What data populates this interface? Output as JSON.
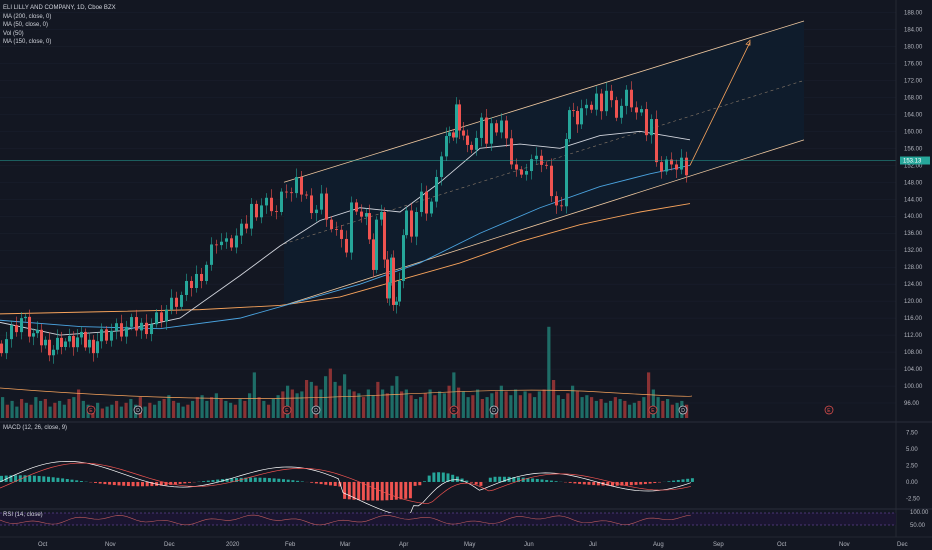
{
  "legend": {
    "title": "ELI LILLY AND COMPANY, 1D, Cboe BZX",
    "ma200": "MA (200, close, 0)",
    "ma50": "MA (50, close, 0)",
    "vol": "Vol (50)",
    "ma150": "MA (150, close, 0)"
  },
  "macd_title": "MACD (12, 26, close, 9)",
  "rsi_title": "RSI (14, close)",
  "price_marker": "153.13",
  "earnings_marker": "E",
  "dividend_marker": "D",
  "colors": {
    "up": "#26a69a",
    "down": "#ef5350",
    "channel": "#0f1c2c",
    "ma200": "#f7a35c",
    "ma50": "#d1d4dc",
    "ma150": "#4aa3df",
    "macd": "#ffffff",
    "signal": "#ef5350",
    "rsi": "#c05c5c"
  },
  "chart_data": {
    "type": "candlestick",
    "price_axis": {
      "ticks": [
        96.0,
        100.0,
        104.0,
        108.0,
        112.0,
        116.0,
        120.0,
        124.0,
        128.0,
        132.0,
        136.0,
        140.0,
        144.0,
        148.0,
        152.0,
        156.0,
        160.0,
        164.0,
        168.0,
        172.0,
        176.0,
        180.0,
        184.0,
        188.0
      ],
      "labels": [
        "96.00",
        "100.00",
        "104.00",
        "108.00",
        "112.00",
        "116.00",
        "120.00",
        "124.00",
        "128.00",
        "132.00",
        "136.00",
        "140.00",
        "144.00",
        "148.00",
        "152.00",
        "156.00",
        "160.00",
        "164.00",
        "168.00",
        "172.00",
        "176.00",
        "180.00",
        "184.00",
        "188.00"
      ],
      "range": [
        92,
        190
      ]
    },
    "time_axis": [
      "Oct",
      "Nov",
      "Dec",
      "2020",
      "Feb",
      "Mar",
      "Apr",
      "May",
      "Jun",
      "Jul",
      "Aug",
      "Sep",
      "Oct",
      "Nov",
      "Dec"
    ],
    "last_price": 153.13,
    "price_path": [
      [
        0,
        110
      ],
      [
        10,
        113
      ],
      [
        20,
        116
      ],
      [
        28,
        113
      ],
      [
        36,
        111
      ],
      [
        44,
        110
      ],
      [
        52,
        109
      ],
      [
        60,
        111
      ],
      [
        68,
        110
      ],
      [
        76,
        111
      ],
      [
        84,
        110
      ],
      [
        92,
        110
      ],
      [
        100,
        112
      ],
      [
        110,
        113
      ],
      [
        120,
        113
      ],
      [
        130,
        114
      ],
      [
        140,
        114
      ],
      [
        150,
        115
      ],
      [
        160,
        117
      ],
      [
        170,
        119
      ],
      [
        180,
        121
      ],
      [
        190,
        124
      ],
      [
        200,
        127
      ],
      [
        205,
        129
      ],
      [
        210,
        132
      ],
      [
        215,
        135
      ],
      [
        220,
        134
      ],
      [
        225,
        133
      ],
      [
        230,
        134
      ],
      [
        235,
        135
      ],
      [
        240,
        136
      ],
      [
        245,
        138
      ],
      [
        250,
        142
      ],
      [
        255,
        142
      ],
      [
        260,
        143
      ],
      [
        265,
        143
      ],
      [
        270,
        143
      ],
      [
        275,
        141
      ],
      [
        280,
        144
      ],
      [
        285,
        147
      ],
      [
        290,
        145
      ],
      [
        295,
        147
      ],
      [
        300,
        146
      ],
      [
        305,
        144
      ],
      [
        310,
        143
      ],
      [
        315,
        142
      ],
      [
        320,
        144
      ],
      [
        325,
        141
      ],
      [
        330,
        137
      ],
      [
        335,
        135
      ],
      [
        340,
        136
      ],
      [
        345,
        131
      ],
      [
        350,
        141
      ],
      [
        355,
        142
      ],
      [
        360,
        139
      ],
      [
        365,
        143
      ],
      [
        368,
        135
      ],
      [
        372,
        126
      ],
      [
        375,
        141
      ],
      [
        380,
        141
      ],
      [
        383,
        128
      ],
      [
        386,
        122
      ],
      [
        388,
        124
      ],
      [
        390,
        128
      ],
      [
        392,
        120
      ],
      [
        395,
        119
      ],
      [
        398,
        127
      ],
      [
        402,
        136
      ],
      [
        405,
        140
      ],
      [
        410,
        137
      ],
      [
        415,
        141
      ],
      [
        420,
        144
      ],
      [
        425,
        142
      ],
      [
        430,
        143
      ],
      [
        435,
        147
      ],
      [
        440,
        155
      ],
      [
        445,
        158
      ],
      [
        448,
        162
      ],
      [
        452,
        159
      ],
      [
        455,
        165
      ],
      [
        458,
        162
      ],
      [
        462,
        159
      ],
      [
        466,
        155
      ],
      [
        470,
        157
      ],
      [
        475,
        158
      ],
      [
        480,
        161
      ],
      [
        485,
        158
      ],
      [
        490,
        161
      ],
      [
        495,
        162
      ],
      [
        500,
        163
      ],
      [
        505,
        157
      ],
      [
        510,
        154
      ],
      [
        515,
        151
      ],
      [
        520,
        148
      ],
      [
        525,
        152
      ],
      [
        530,
        153
      ],
      [
        535,
        152
      ],
      [
        540,
        153
      ],
      [
        545,
        151
      ],
      [
        550,
        147
      ],
      [
        555,
        143
      ],
      [
        560,
        141
      ],
      [
        565,
        160
      ],
      [
        568,
        165
      ],
      [
        572,
        163
      ],
      [
        576,
        163
      ],
      [
        580,
        165
      ],
      [
        585,
        164
      ],
      [
        590,
        166
      ],
      [
        595,
        168
      ],
      [
        600,
        167
      ],
      [
        605,
        170
      ],
      [
        610,
        166
      ],
      [
        615,
        165
      ],
      [
        620,
        166
      ],
      [
        625,
        168
      ],
      [
        630,
        167
      ],
      [
        635,
        164
      ],
      [
        640,
        163
      ],
      [
        645,
        160
      ],
      [
        650,
        162
      ],
      [
        655,
        155
      ],
      [
        660,
        151
      ],
      [
        665,
        152
      ],
      [
        670,
        154
      ],
      [
        675,
        151
      ],
      [
        680,
        152
      ],
      [
        685,
        151
      ],
      [
        690,
        153
      ]
    ],
    "volume_heights": [
      22,
      14,
      18,
      12,
      20,
      16,
      14,
      22,
      18,
      20,
      12,
      16,
      18,
      14,
      20,
      22,
      30,
      18,
      14,
      12,
      16,
      10,
      12,
      14,
      18,
      12,
      16,
      20,
      14,
      22,
      12,
      16,
      14,
      18,
      20,
      24,
      18,
      16,
      12,
      14,
      18,
      22,
      24,
      18,
      22,
      26,
      20,
      18,
      16,
      14,
      20,
      18,
      26,
      48,
      22,
      18,
      14,
      20,
      24,
      28,
      34,
      30,
      26,
      28,
      40,
      38,
      34,
      30,
      44,
      52,
      38,
      34,
      46,
      30,
      28,
      26,
      22,
      30,
      24,
      38,
      30,
      26,
      34,
      44,
      28,
      30,
      24,
      20,
      22,
      26,
      30,
      24,
      28,
      26,
      34,
      48,
      32,
      28,
      22,
      24,
      30,
      20,
      22,
      26,
      28,
      34,
      28,
      24,
      30,
      24,
      28,
      26,
      22,
      28,
      30,
      96,
      40,
      24,
      20,
      26,
      34,
      28,
      22,
      24,
      22,
      18,
      20,
      16,
      18,
      22,
      20,
      18,
      14,
      16,
      18,
      22,
      48,
      30,
      22,
      18,
      20,
      14,
      16,
      18,
      14
    ],
    "series": [
      {
        "name": "MA (200, close, 0)",
        "values": [
          [
            0,
            117
          ],
          [
            100,
            117.5
          ],
          [
            200,
            118
          ],
          [
            280,
            119
          ],
          [
            340,
            121
          ],
          [
            400,
            125
          ],
          [
            460,
            129
          ],
          [
            520,
            134
          ],
          [
            580,
            138
          ],
          [
            640,
            141
          ],
          [
            690,
            143
          ]
        ]
      },
      {
        "name": "MA (50, close, 0)",
        "values": [
          [
            0,
            115
          ],
          [
            60,
            112
          ],
          [
            120,
            113
          ],
          [
            180,
            116
          ],
          [
            240,
            126
          ],
          [
            280,
            133
          ],
          [
            320,
            139
          ],
          [
            360,
            142
          ],
          [
            400,
            141
          ],
          [
            440,
            148
          ],
          [
            480,
            156
          ],
          [
            520,
            157
          ],
          [
            560,
            156
          ],
          [
            600,
            159
          ],
          [
            640,
            160
          ],
          [
            690,
            158
          ]
        ]
      },
      {
        "name": "MA (150, close, 0)",
        "values": [
          [
            0,
            115.5
          ],
          [
            80,
            114
          ],
          [
            160,
            113.5
          ],
          [
            240,
            116
          ],
          [
            300,
            120
          ],
          [
            360,
            124
          ],
          [
            420,
            129
          ],
          [
            480,
            136
          ],
          [
            540,
            142
          ],
          [
            600,
            147
          ],
          [
            650,
            150
          ],
          [
            690,
            152
          ]
        ]
      }
    ],
    "channel": {
      "x1": 284,
      "x2": 804,
      "lower": [
        119,
        158
      ],
      "upper": [
        148,
        186
      ],
      "mid": [
        133.5,
        172
      ]
    },
    "projection": [
      [
        690,
        152
      ],
      [
        750,
        181
      ]
    ]
  }
}
